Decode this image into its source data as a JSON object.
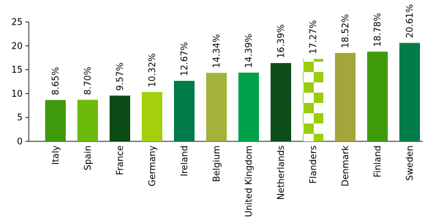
{
  "chart_data": {
    "type": "bar",
    "categories": [
      "Italy",
      "Spain",
      "France",
      "Germany",
      "Ireland",
      "Belgium",
      "United Kingdom",
      "Netherlands",
      "Flanders",
      "Denmark",
      "Finland",
      "Sweden"
    ],
    "values": [
      8.65,
      8.7,
      9.57,
      10.32,
      12.67,
      14.34,
      14.39,
      16.39,
      17.27,
      18.52,
      18.78,
      20.61
    ],
    "data_labels": [
      "8.65%",
      "8.70%",
      "9.57%",
      "10.32%",
      "12.67%",
      "14.34%",
      "14.39%",
      "16.39%",
      "17.27%",
      "18.52%",
      "18.78%",
      "20.61%"
    ],
    "bar_colors": [
      "#3f9b0b",
      "#6cbb0c",
      "#0a4a14",
      "#a4cf0c",
      "#007b49",
      "#a3b23a",
      "#00a14b",
      "#0c4d1a",
      "#9acd0c",
      "#a3a63a",
      "#3f9b0b",
      "#007b49"
    ],
    "highlighted_category": "Flanders",
    "highlight_pattern": "checkered",
    "y_ticks": [
      0,
      5,
      10,
      15,
      20,
      25
    ],
    "ylim": [
      0,
      25
    ],
    "title": "",
    "xlabel": "",
    "ylabel": "",
    "grid": false,
    "legend": false
  }
}
